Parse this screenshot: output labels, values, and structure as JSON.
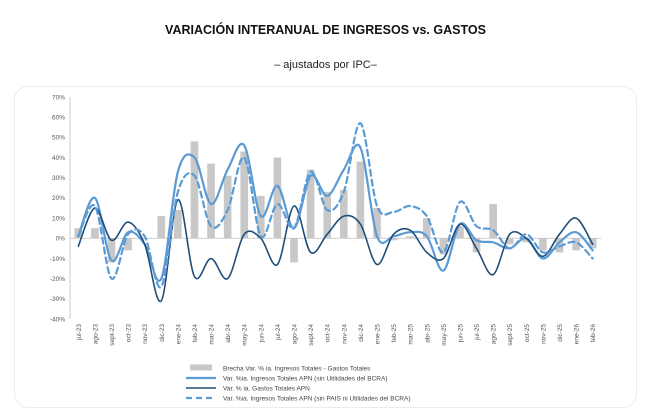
{
  "chart_data": {
    "type": "bar+line",
    "title": "VARIACIÓN INTERANUAL DE INGRESOS vs. GASTOS",
    "subtitle": "– ajustados por IPC–",
    "ylim": [
      -40,
      70
    ],
    "yticks": [
      -40,
      -30,
      -20,
      -10,
      0,
      10,
      20,
      30,
      40,
      50,
      60,
      70
    ],
    "ytick_labels": [
      "-40%",
      "-30%",
      "-20%",
      "-10%",
      "0%",
      "10%",
      "20%",
      "30%",
      "40%",
      "50%",
      "60%",
      "70%"
    ],
    "categories": [
      "jul-23",
      "ago-23",
      "sept-23",
      "oct-23",
      "nov-23",
      "dic-23",
      "ene-24",
      "feb-24",
      "mar-24",
      "abr-24",
      "may-24",
      "jun-24",
      "jul-24",
      "ago-24",
      "sept-24",
      "oct-24",
      "nov-24",
      "dic-24",
      "ene-25",
      "feb-25",
      "mar-25",
      "abr-25",
      "may-25",
      "jun-25",
      "jul-25",
      "ago-25",
      "sept-25",
      "oct-25",
      "nov-25",
      "dic-25",
      "ene-26",
      "feb-26"
    ],
    "legend_position": "bottom",
    "colors": {
      "bars": "#c8c8c8",
      "ingresos": "#5b9bd5",
      "gastos": "#1f4e79",
      "ingresos_sin_pais": "#5b9bd5",
      "axis": "#bfbfbf"
    },
    "series": [
      {
        "name": "Brecha Var. % ia. Ingresos Totales - Gastos Totales",
        "kind": "bar",
        "values": [
          5,
          5,
          -12,
          -6,
          0,
          11,
          14,
          48,
          37,
          31,
          43,
          21,
          40,
          -12,
          34,
          23,
          24,
          38,
          15,
          -1,
          1,
          10,
          -8,
          6,
          -7,
          17,
          -3,
          -2,
          -6,
          -7,
          -6,
          -5
        ]
      },
      {
        "name": "Var. %ia. Ingresos Totales APN (sin Utilidades del BCRA)",
        "kind": "line",
        "style": "solid",
        "values": [
          1,
          20,
          -11,
          3,
          -3,
          -20,
          33,
          40,
          17,
          34,
          46,
          11,
          26,
          5,
          31,
          21,
          34,
          45,
          1,
          1,
          3,
          1,
          -16,
          7,
          -1,
          -2,
          -5,
          0,
          -10,
          -2,
          3,
          -6
        ]
      },
      {
        "name": "Var. % ia. Gastos Totales APN",
        "kind": "line",
        "style": "solid",
        "values": [
          -4,
          15,
          -1,
          8,
          -3,
          -31,
          19,
          -19,
          -10,
          -20,
          2,
          0,
          -13,
          16,
          -7,
          2,
          11,
          7,
          -13,
          2,
          4,
          -7,
          -10,
          7,
          -5,
          -18,
          2,
          0,
          -9,
          2,
          10,
          -3
        ]
      },
      {
        "name": "Var. %ia. Ingresos Totales APN (sin PAIS ni Utilidades del BCRA)",
        "kind": "line",
        "style": "dashed",
        "values": [
          1,
          16,
          -20,
          2,
          1,
          -24,
          23,
          31,
          6,
          14,
          40,
          1,
          17,
          5,
          33,
          14,
          23,
          57,
          16,
          13,
          16,
          11,
          -7,
          18,
          6,
          4,
          -5,
          2,
          -7,
          -4,
          -2,
          -10
        ]
      }
    ]
  }
}
